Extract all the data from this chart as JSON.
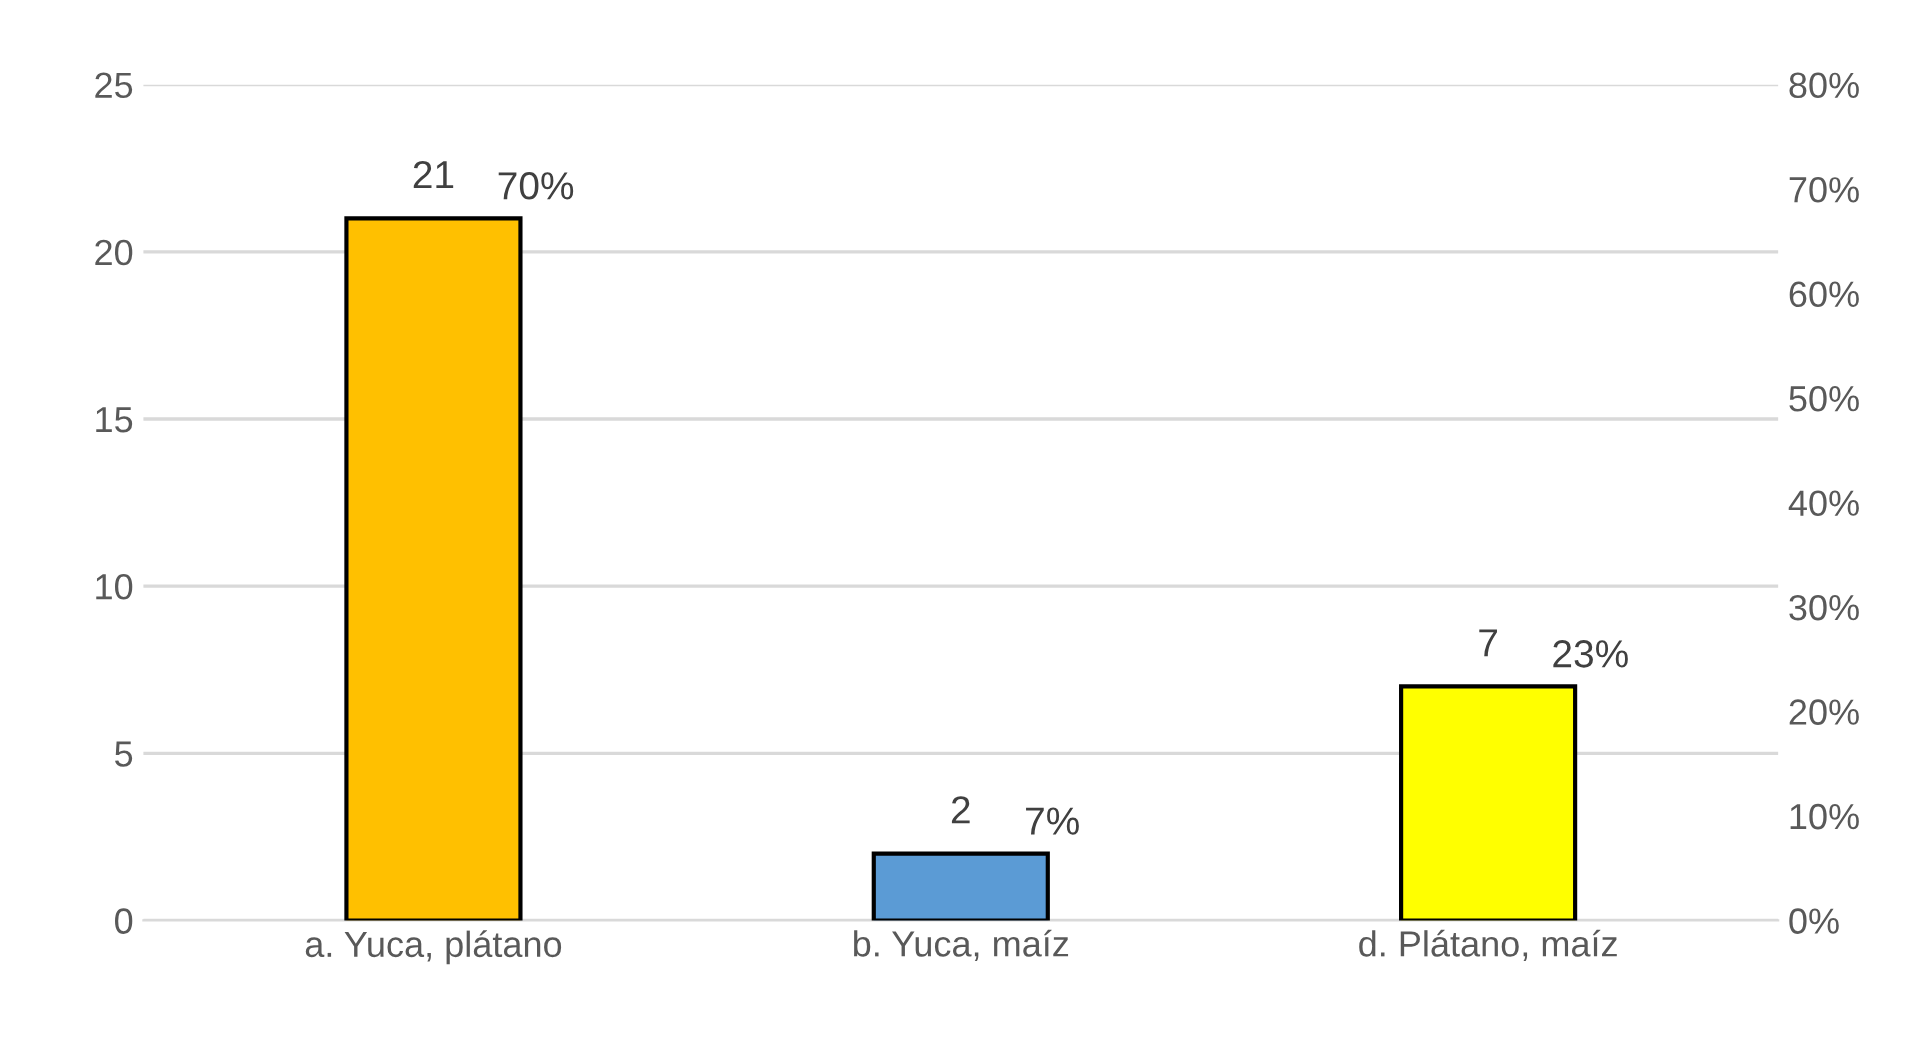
{
  "chart_data": {
    "type": "bar",
    "categories": [
      "a. Yuca, plátano",
      "b. Yuca, maíz",
      "d. Plátano, maíz"
    ],
    "values": [
      21,
      2,
      7
    ],
    "colors": [
      "#ffc000",
      "#5b9bd5",
      "#ffff00"
    ],
    "data_labels": true,
    "ylim": [
      0,
      25
    ],
    "yticks": [
      0,
      5,
      10,
      15,
      20,
      25
    ],
    "y2lim": [
      0,
      80
    ],
    "y2ticks": [
      {
        "value": 0,
        "label": "0%"
      },
      {
        "value": 10,
        "label": "10%"
      },
      {
        "value": 20,
        "label": "20%"
      },
      {
        "value": 30,
        "label": "30%"
      },
      {
        "value": 40,
        "label": "40%"
      },
      {
        "value": 50,
        "label": "50%"
      },
      {
        "value": 60,
        "label": "60%"
      },
      {
        "value": 70,
        "label": "70%"
      },
      {
        "value": 80,
        "label": "80%"
      }
    ],
    "annotations": [
      {
        "text": "70%",
        "x": "a. Yuca, plátano",
        "y": 21
      },
      {
        "text": "7%",
        "x": "b. Yuca, maíz",
        "y": 2
      },
      {
        "text": "23%",
        "x": "d. Plátano, maíz",
        "y": 7
      }
    ],
    "grid": "y",
    "legend": false
  }
}
